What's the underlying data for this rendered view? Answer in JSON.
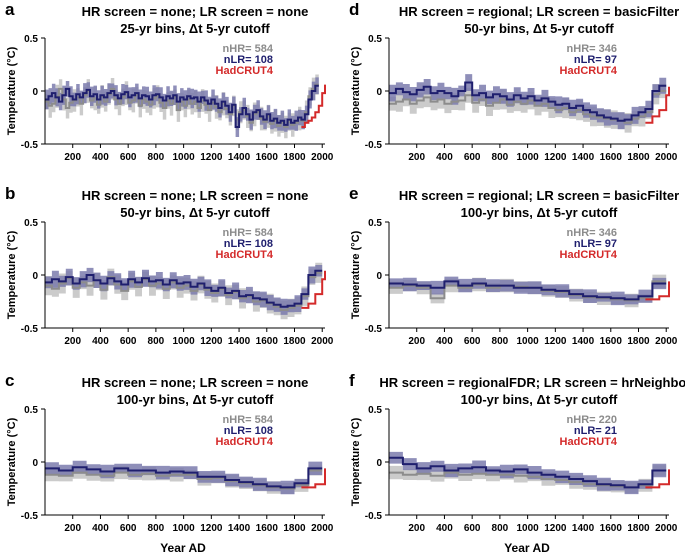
{
  "colors": {
    "hr": "#8c8c8c",
    "hr_band": "#c8c8c8",
    "lr": "#1f1f6e",
    "lr_band": "#7b7bad",
    "had": "#d42a2a"
  },
  "shared": {
    "xlabel": "Year AD",
    "ylabel": "Temperature (°C)"
  },
  "chart_data": [
    {
      "type": "line",
      "letter": "a",
      "title": "HR screen = none; LR screen = none",
      "subtitle": "25-yr bins,  Δt 5-yr cutoff",
      "legend": [
        "nHR= 584",
        "nLR= 108",
        "HadCRUT4"
      ],
      "xlim": [
        0,
        2020
      ],
      "ylim": [
        -0.5,
        0.5
      ],
      "xticks": [
        200,
        400,
        600,
        800,
        1000,
        1200,
        1400,
        1600,
        1800,
        2000
      ],
      "yticks": [
        -0.5,
        0,
        0.5
      ],
      "bin": 25,
      "series": [
        {
          "name": "HR",
          "values": [
            -0.1,
            -0.14,
            -0.12,
            -0.05,
            0.02,
            -0.08,
            -0.16,
            -0.11,
            -0.09,
            -0.06,
            -0.12,
            -0.04,
            0.0,
            -0.09,
            -0.07,
            -0.13,
            -0.05,
            -0.1,
            -0.03,
            0.02,
            -0.08,
            -0.12,
            -0.06,
            -0.02,
            -0.11,
            -0.09,
            -0.04,
            -0.14,
            -0.08,
            -0.1,
            -0.13,
            -0.07,
            -0.05,
            -0.11,
            -0.16,
            -0.09,
            -0.12,
            -0.06,
            -0.18,
            -0.1,
            -0.14,
            -0.08,
            -0.12,
            -0.1,
            -0.16,
            -0.09,
            -0.13,
            -0.18,
            -0.11,
            -0.15,
            -0.2,
            -0.12,
            -0.17,
            -0.22,
            -0.14,
            -0.27,
            -0.2,
            -0.18,
            -0.24,
            -0.3,
            -0.22,
            -0.2,
            -0.26,
            -0.29,
            -0.24,
            -0.31,
            -0.28,
            -0.33,
            -0.3,
            -0.34,
            -0.29,
            -0.32,
            -0.3,
            -0.26,
            -0.28,
            -0.2,
            -0.05,
            0.02,
            0.06
          ]
        },
        {
          "name": "LR",
          "values": [
            -0.08,
            -0.05,
            -0.02,
            -0.06,
            -0.1,
            -0.04,
            0.02,
            -0.05,
            -0.08,
            -0.03,
            -0.06,
            -0.02,
            0.01,
            -0.05,
            -0.03,
            -0.08,
            -0.04,
            -0.06,
            -0.02,
            0.0,
            -0.04,
            -0.07,
            -0.03,
            -0.01,
            -0.06,
            -0.04,
            -0.02,
            -0.07,
            -0.04,
            -0.05,
            -0.08,
            -0.04,
            -0.03,
            -0.06,
            -0.09,
            -0.05,
            -0.07,
            -0.04,
            -0.1,
            -0.06,
            -0.08,
            -0.05,
            -0.07,
            -0.06,
            -0.1,
            -0.06,
            -0.09,
            -0.12,
            -0.08,
            -0.12,
            -0.16,
            -0.1,
            -0.14,
            -0.2,
            -0.13,
            -0.34,
            -0.22,
            -0.16,
            -0.22,
            -0.27,
            -0.2,
            -0.18,
            -0.24,
            -0.27,
            -0.22,
            -0.28,
            -0.26,
            -0.3,
            -0.28,
            -0.32,
            -0.27,
            -0.3,
            -0.28,
            -0.25,
            -0.27,
            -0.22,
            -0.08,
            0.0,
            0.05
          ]
        },
        {
          "name": "HadCRUT4",
          "start": 1850,
          "values": [
            -0.34,
            -0.3,
            -0.28,
            -0.25,
            -0.2,
            -0.14,
            -0.02,
            0.06
          ]
        }
      ]
    },
    {
      "type": "line",
      "letter": "b",
      "title": "HR screen = none; LR screen = none",
      "subtitle": "50-yr bins,  Δt 5-yr cutoff",
      "legend": [
        "nHR= 584",
        "nLR= 108",
        "HadCRUT4"
      ],
      "xlim": [
        0,
        2020
      ],
      "ylim": [
        -0.5,
        0.5
      ],
      "xticks": [
        200,
        400,
        600,
        800,
        1000,
        1200,
        1400,
        1600,
        1800,
        2000
      ],
      "yticks": [
        -0.5,
        0,
        0.5
      ],
      "bin": 50,
      "series": [
        {
          "name": "HR",
          "values": [
            -0.1,
            -0.13,
            -0.08,
            -0.03,
            -0.12,
            -0.07,
            -0.1,
            -0.05,
            -0.14,
            -0.02,
            -0.09,
            -0.15,
            -0.06,
            -0.11,
            -0.04,
            -0.1,
            -0.08,
            -0.13,
            -0.07,
            -0.12,
            -0.1,
            -0.15,
            -0.09,
            -0.14,
            -0.17,
            -0.13,
            -0.19,
            -0.16,
            -0.22,
            -0.2,
            -0.25,
            -0.24,
            -0.27,
            -0.3,
            -0.33,
            -0.31,
            -0.29,
            -0.2,
            -0.02,
            0.02
          ]
        },
        {
          "name": "LR",
          "values": [
            -0.07,
            -0.04,
            -0.06,
            -0.02,
            -0.08,
            -0.04,
            0.0,
            -0.05,
            -0.08,
            -0.03,
            -0.06,
            -0.09,
            -0.04,
            -0.07,
            -0.03,
            -0.06,
            -0.05,
            -0.09,
            -0.05,
            -0.08,
            -0.07,
            -0.11,
            -0.08,
            -0.12,
            -0.15,
            -0.12,
            -0.17,
            -0.15,
            -0.2,
            -0.19,
            -0.22,
            -0.23,
            -0.26,
            -0.28,
            -0.3,
            -0.29,
            -0.27,
            -0.18,
            0.0,
            0.04
          ]
        },
        {
          "name": "HadCRUT4",
          "start": 1850,
          "values": [
            -0.31,
            -0.27,
            -0.18,
            -0.04,
            0.04
          ]
        }
      ]
    },
    {
      "type": "line",
      "letter": "c",
      "title": "HR screen = none; LR screen = none",
      "subtitle": "100-yr bins,  Δt 5-yr cutoff",
      "legend": [
        "nHR= 584",
        "nLR= 108",
        "HadCRUT4"
      ],
      "xlim": [
        0,
        2020
      ],
      "ylim": [
        -0.5,
        0.5
      ],
      "xticks": [
        200,
        400,
        600,
        800,
        1000,
        1200,
        1400,
        1600,
        1800,
        2000
      ],
      "yticks": [
        -0.5,
        0,
        0.5
      ],
      "bin": 100,
      "series": [
        {
          "name": "HR",
          "values": [
            -0.12,
            -0.13,
            -0.1,
            -0.12,
            -0.13,
            -0.1,
            -0.12,
            -0.11,
            -0.13,
            -0.12,
            -0.12,
            -0.16,
            -0.15,
            -0.18,
            -0.2,
            -0.22,
            -0.24,
            -0.25,
            -0.22,
            -0.08
          ]
        },
        {
          "name": "LR",
          "values": [
            -0.06,
            -0.08,
            -0.05,
            -0.07,
            -0.09,
            -0.06,
            -0.08,
            -0.08,
            -0.1,
            -0.09,
            -0.1,
            -0.14,
            -0.14,
            -0.17,
            -0.19,
            -0.21,
            -0.23,
            -0.24,
            -0.2,
            -0.06
          ]
        },
        {
          "name": "HadCRUT4",
          "start": 1850,
          "values": [
            -0.24,
            -0.21,
            -0.08,
            -0.06
          ]
        }
      ]
    },
    {
      "type": "line",
      "letter": "d",
      "title": "HR screen = regional; LR screen = basicFilter",
      "subtitle": "50-yr bins,  Δt 5-yr cutoff",
      "legend": [
        "nHR= 346",
        "nLR= 97",
        "HadCRUT4"
      ],
      "xlim": [
        0,
        2020
      ],
      "ylim": [
        -0.5,
        0.5
      ],
      "xticks": [
        200,
        400,
        600,
        800,
        1000,
        1200,
        1400,
        1600,
        1800,
        2000
      ],
      "yticks": [
        -0.5,
        0,
        0.5
      ],
      "bin": 50,
      "series": [
        {
          "name": "HR",
          "values": [
            -0.12,
            -0.1,
            -0.08,
            -0.12,
            -0.09,
            -0.06,
            -0.1,
            -0.08,
            -0.12,
            -0.1,
            -0.09,
            -0.04,
            -0.11,
            -0.08,
            -0.14,
            -0.11,
            -0.08,
            -0.13,
            -0.1,
            -0.12,
            -0.09,
            -0.14,
            -0.12,
            -0.16,
            -0.18,
            -0.16,
            -0.2,
            -0.18,
            -0.22,
            -0.24,
            -0.25,
            -0.26,
            -0.27,
            -0.28,
            -0.3,
            -0.26,
            -0.24,
            -0.2,
            -0.03,
            0.0
          ]
        },
        {
          "name": "LR",
          "values": [
            -0.02,
            0.02,
            -0.01,
            -0.03,
            0.01,
            0.04,
            -0.02,
            0.0,
            -0.02,
            -0.05,
            0.0,
            0.08,
            -0.04,
            -0.02,
            -0.06,
            -0.03,
            -0.05,
            -0.08,
            -0.04,
            -0.07,
            -0.05,
            -0.09,
            -0.07,
            -0.1,
            -0.13,
            -0.12,
            -0.16,
            -0.14,
            -0.18,
            -0.2,
            -0.23,
            -0.25,
            -0.26,
            -0.28,
            -0.27,
            -0.23,
            -0.2,
            -0.17,
            0.0,
            0.05
          ]
        },
        {
          "name": "HadCRUT4",
          "start": 1850,
          "values": [
            -0.3,
            -0.24,
            -0.18,
            -0.04,
            0.04
          ]
        }
      ]
    },
    {
      "type": "line",
      "letter": "e",
      "title": "HR screen = regional; LR screen = basicFilter",
      "subtitle": "100-yr bins,  Δt 5-yr cutoff",
      "legend": [
        "nHR= 346",
        "nLR= 97",
        "HadCRUT4"
      ],
      "xlim": [
        0,
        2020
      ],
      "ylim": [
        -0.5,
        0.5
      ],
      "xticks": [
        200,
        400,
        600,
        800,
        1000,
        1200,
        1400,
        1600,
        1800,
        2000
      ],
      "yticks": [
        -0.5,
        0,
        0.5
      ],
      "bin": 100,
      "series": [
        {
          "name": "HR",
          "values": [
            -0.12,
            -0.1,
            -0.12,
            -0.22,
            -0.1,
            -0.12,
            -0.09,
            -0.12,
            -0.1,
            -0.11,
            -0.12,
            -0.15,
            -0.16,
            -0.19,
            -0.21,
            -0.22,
            -0.23,
            -0.24,
            -0.22,
            -0.06
          ]
        },
        {
          "name": "LR",
          "values": [
            -0.08,
            -0.09,
            -0.1,
            -0.12,
            -0.06,
            -0.1,
            -0.08,
            -0.1,
            -0.1,
            -0.12,
            -0.12,
            -0.14,
            -0.15,
            -0.18,
            -0.2,
            -0.21,
            -0.22,
            -0.23,
            -0.2,
            -0.08
          ]
        },
        {
          "name": "HadCRUT4",
          "start": 1850,
          "values": [
            -0.23,
            -0.2,
            -0.08,
            -0.06
          ]
        }
      ]
    },
    {
      "type": "line",
      "letter": "f",
      "title": "HR screen = regionalFDR; LR screen = hrNeighbors",
      "subtitle": "100-yr bins,  Δt 5-yr cutoff",
      "legend": [
        "nHR= 220",
        "nLR= 21",
        "HadCRUT4"
      ],
      "xlim": [
        0,
        2020
      ],
      "ylim": [
        -0.5,
        0.5
      ],
      "xticks": [
        200,
        400,
        600,
        800,
        1000,
        1200,
        1400,
        1600,
        1800,
        2000
      ],
      "yticks": [
        -0.5,
        0,
        0.5
      ],
      "bin": 100,
      "series": [
        {
          "name": "HR",
          "values": [
            -0.1,
            -0.12,
            -0.11,
            -0.13,
            -0.1,
            -0.12,
            -0.11,
            -0.12,
            -0.12,
            -0.13,
            -0.14,
            -0.16,
            -0.17,
            -0.19,
            -0.21,
            -0.22,
            -0.23,
            -0.24,
            -0.22,
            -0.08
          ]
        },
        {
          "name": "LR",
          "values": [
            0.04,
            -0.02,
            -0.06,
            -0.04,
            -0.08,
            -0.06,
            -0.05,
            -0.08,
            -0.09,
            -0.07,
            -0.1,
            -0.12,
            -0.14,
            -0.16,
            -0.18,
            -0.21,
            -0.22,
            -0.24,
            -0.21,
            -0.08
          ]
        },
        {
          "name": "HadCRUT4",
          "start": 1850,
          "values": [
            -0.24,
            -0.21,
            -0.08,
            -0.07
          ]
        }
      ]
    }
  ]
}
